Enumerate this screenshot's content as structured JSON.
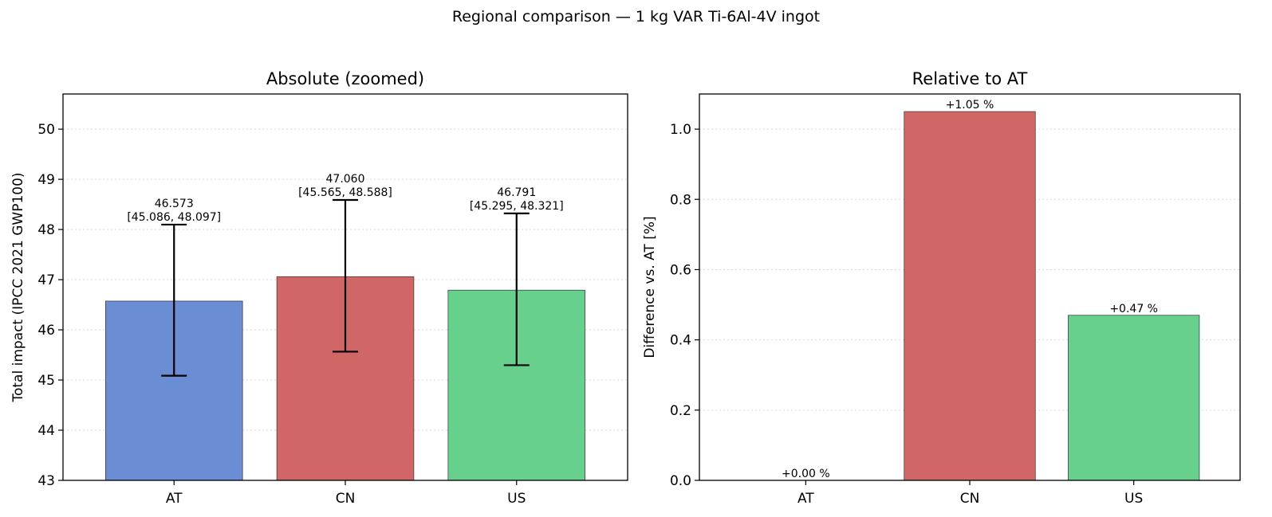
{
  "suptitle": "Regional comparison — 1 kg VAR Ti-6Al-4V ingot",
  "chart_data": [
    {
      "type": "bar",
      "title": "Absolute (zoomed)",
      "xlabel": "",
      "ylabel": "Total impact (IPCC 2021 GWP100)",
      "categories": [
        "AT",
        "CN",
        "US"
      ],
      "values": [
        46.573,
        47.06,
        46.791
      ],
      "ci_low": [
        45.086,
        45.565,
        45.295
      ],
      "ci_high": [
        48.097,
        48.588,
        48.321
      ],
      "value_labels": [
        "46.573",
        "47.060",
        "46.791"
      ],
      "ci_labels": [
        "[45.086, 48.097]",
        "[45.565, 48.588]",
        "[45.295, 48.321]"
      ],
      "colors": [
        "#6a8dd3",
        "#d06766",
        "#67d08d"
      ],
      "ylim": [
        43,
        50.7
      ],
      "yticks": [
        43,
        44,
        45,
        46,
        47,
        48,
        49,
        50
      ],
      "grid": "y"
    },
    {
      "type": "bar",
      "title": "Relative to AT",
      "xlabel": "",
      "ylabel": "Difference vs. AT [%]",
      "categories": [
        "AT",
        "CN",
        "US"
      ],
      "values": [
        0.0,
        1.05,
        0.47
      ],
      "value_labels": [
        "+0.00 %",
        "+1.05 %",
        "+0.47 %"
      ],
      "colors": [
        "#6a8dd3",
        "#d06766",
        "#67d08d"
      ],
      "ylim": [
        0,
        1.1
      ],
      "yticks": [
        "0.0",
        "0.2",
        "0.4",
        "0.6",
        "0.8",
        "1.0"
      ],
      "grid": "y"
    }
  ]
}
